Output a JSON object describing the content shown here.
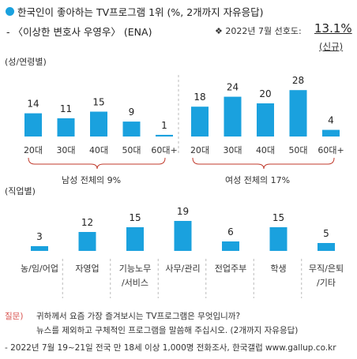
{
  "header": {
    "title": "한국인이 좋아하는 TV프로그램 1위 (%, 2개까지 자유응답)",
    "subtitle": "- 〈이상한 변호사 우영우〉 (ENA)",
    "preference_label": "❖ 2022년 7월 선호도:",
    "preference_value": "13.1%",
    "new_tag": "(신규)"
  },
  "section_labels": {
    "gender_age": "(성/연령별)",
    "occupation": "(직업별)"
  },
  "group_labels": {
    "male": "남성 전체의 9%",
    "female": "여성 전체의 17%"
  },
  "footer": {
    "q_label": "질문)",
    "q_line1": "귀하께서 요즘 가장 즐겨보시는 TV프로그램은 무엇입니까?",
    "q_line2": "뉴스를 제외하고 구체적인 프로그램을 말씀해 주십시오. (2개까지 자유응답)",
    "source": "- 2022년 7월 19~21일 전국 만 18세 이상 1,000명 전화조사, 한국갤럽 www.gallup.co.kr"
  },
  "colors": {
    "bar": "#1aa1de",
    "accent_red": "#d9534f"
  },
  "chart_data": [
    {
      "type": "bar",
      "title": "",
      "series": [
        {
          "name": "남성",
          "categories": [
            "20대",
            "30대",
            "40대",
            "50대",
            "60대+"
          ],
          "values": [
            14,
            11,
            15,
            9,
            1
          ]
        },
        {
          "name": "여성",
          "categories": [
            "20대",
            "30대",
            "40대",
            "50대",
            "60대+"
          ],
          "values": [
            18,
            24,
            20,
            28,
            4
          ]
        }
      ],
      "ylabel": "%"
    },
    {
      "type": "bar",
      "title": "",
      "categories": [
        "농/임/어업",
        "자영업",
        "기능노무\n/서비스",
        "사무/관리",
        "전업주부",
        "학생",
        "무직/은퇴\n/기타"
      ],
      "values": [
        3,
        12,
        15,
        19,
        6,
        15,
        5
      ],
      "ylabel": "%"
    }
  ]
}
